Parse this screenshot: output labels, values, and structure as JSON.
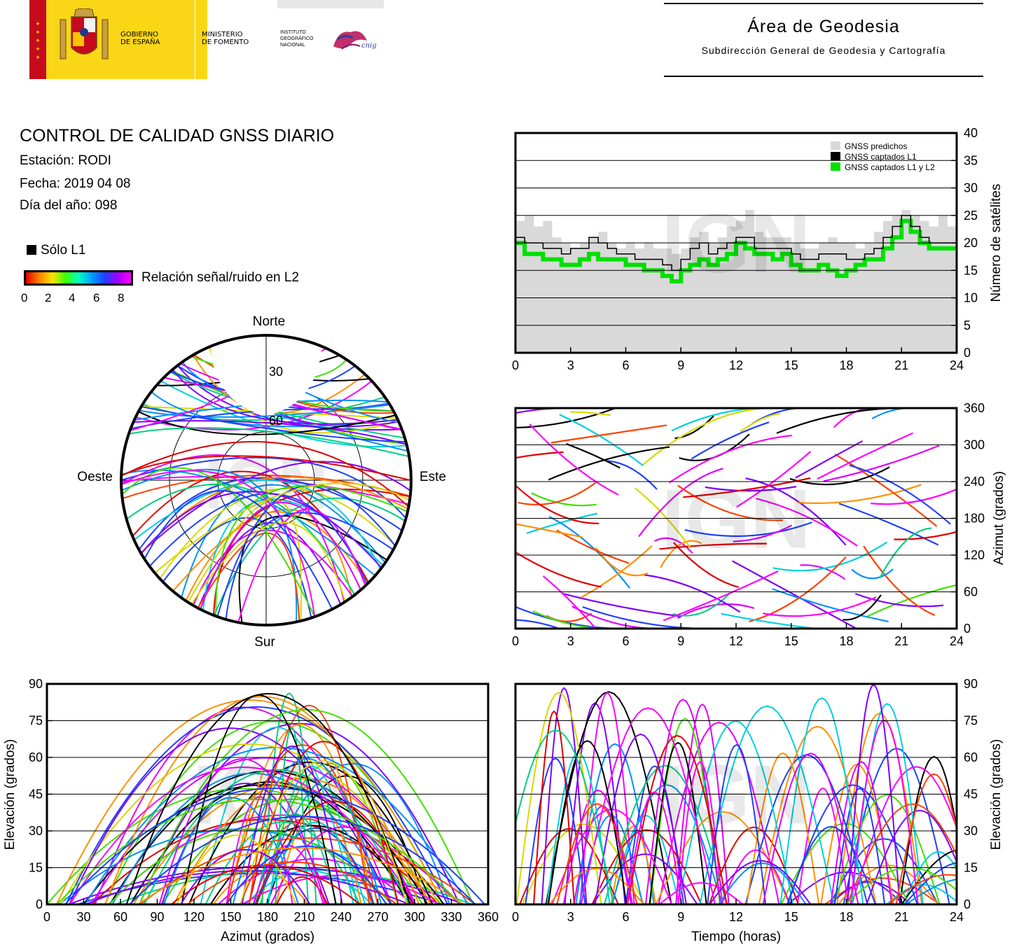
{
  "header": {
    "logo_gov": {
      "line1": "GOBIERNO",
      "line2": "DE ESPAÑA"
    },
    "logo_ministry": {
      "line1": "MINISTERIO",
      "line2": "DE FOMENTO"
    },
    "logo_ign": {
      "line1": "INSTITUTO",
      "line2": "GEOGRÁFICO",
      "line3": "NACIONAL"
    },
    "logo_cnig": "cnig",
    "area_title": "Área de Geodesia",
    "area_subtitle": "Subdirección General de Geodesia y Cartografía",
    "colors": {
      "flag_red": "#c60b1e",
      "flag_yellow": "#ffc400",
      "gov_yellow": "#f9d616",
      "eu_blue": "#1a3c8e"
    }
  },
  "report": {
    "title": "CONTROL DE CALIDAD GNSS DIARIO",
    "station": "Estación: RODI",
    "date": "Fecha: 2019 04 08",
    "doy": "Día del año: 098"
  },
  "legend": {
    "l1_only": "Sólo L1",
    "snr_label": "Relación señal/ruido en L2",
    "snr_ticks": [
      "0",
      "2",
      "4",
      "6",
      "8"
    ]
  },
  "watermark": "IGN",
  "chart_data": [
    {
      "id": "satellite-count",
      "type": "area",
      "xlabel": "",
      "ylabel": "Número de satélites",
      "xlim": [
        0,
        24
      ],
      "ylim": [
        0,
        40
      ],
      "xticks": [
        0,
        3,
        6,
        9,
        12,
        15,
        18,
        21,
        24
      ],
      "yticks": [
        0,
        5,
        10,
        15,
        20,
        25,
        30,
        35,
        40
      ],
      "grid": "horizontal",
      "legend_position": "top-right",
      "series": [
        {
          "name": "GNSS predichos",
          "color": "#d9d9d9",
          "x": [
            0,
            0.5,
            1,
            1.5,
            2,
            2.5,
            3,
            3.5,
            4,
            4.5,
            5,
            5.5,
            6,
            6.5,
            7,
            7.5,
            8,
            8.5,
            9,
            9.5,
            10,
            10.5,
            11,
            11.5,
            12,
            12.5,
            13,
            13.5,
            14,
            14.5,
            15,
            15.5,
            16,
            16.5,
            17,
            17.5,
            18,
            18.5,
            19,
            19.5,
            20,
            20.5,
            21,
            21.5,
            22,
            22.5,
            23,
            23.5,
            24
          ],
          "values": [
            24,
            25,
            23,
            24,
            21,
            20,
            19,
            20,
            21,
            22,
            20,
            19,
            20,
            19,
            20,
            19,
            19,
            18,
            19,
            21,
            22,
            20,
            21,
            23,
            24,
            26,
            22,
            21,
            21,
            21,
            20,
            19,
            19,
            20,
            21,
            20,
            20,
            19,
            20,
            22,
            24,
            25,
            26,
            25,
            24,
            23,
            25,
            23,
            22
          ]
        },
        {
          "name": "GNSS captados L1",
          "color": "#000000",
          "x": [
            0,
            0.5,
            1,
            1.5,
            2,
            2.5,
            3,
            3.5,
            4,
            4.5,
            5,
            5.5,
            6,
            6.5,
            7,
            7.5,
            8,
            8.5,
            9,
            9.5,
            10,
            10.5,
            11,
            11.5,
            12,
            12.5,
            13,
            13.5,
            14,
            14.5,
            15,
            15.5,
            16,
            16.5,
            17,
            17.5,
            18,
            18.5,
            19,
            19.5,
            20,
            20.5,
            21,
            21.5,
            22,
            22.5,
            23,
            23.5,
            24
          ],
          "values": [
            21,
            20,
            20,
            19,
            19,
            18,
            19,
            19,
            21,
            20,
            19,
            18,
            18,
            17,
            17,
            17,
            16,
            15,
            17,
            19,
            20,
            18,
            19,
            20,
            21,
            21,
            19,
            19,
            19,
            19,
            18,
            17,
            17,
            18,
            18,
            18,
            17,
            17,
            18,
            19,
            21,
            23,
            25,
            23,
            21,
            20,
            20,
            20,
            20
          ]
        },
        {
          "name": "GNSS captados L1 y L2",
          "color": "#00e000",
          "x": [
            0,
            0.5,
            1,
            1.5,
            2,
            2.5,
            3,
            3.5,
            4,
            4.5,
            5,
            5.5,
            6,
            6.5,
            7,
            7.5,
            8,
            8.5,
            9,
            9.5,
            10,
            10.5,
            11,
            11.5,
            12,
            12.5,
            13,
            13.5,
            14,
            14.5,
            15,
            15.5,
            16,
            16.5,
            17,
            17.5,
            18,
            18.5,
            19,
            19.5,
            20,
            20.5,
            21,
            21.5,
            22,
            22.5,
            23,
            23.5,
            24
          ],
          "values": [
            20,
            18,
            18,
            17,
            17,
            16,
            16,
            17,
            18,
            17,
            17,
            17,
            16,
            16,
            15,
            15,
            14,
            13,
            15,
            16,
            17,
            16,
            17,
            18,
            20,
            19,
            18,
            18,
            17,
            18,
            16,
            15,
            15,
            16,
            15,
            14,
            15,
            16,
            17,
            17,
            19,
            21,
            24,
            22,
            20,
            19,
            19,
            19,
            19
          ]
        }
      ]
    },
    {
      "id": "sky-plot",
      "type": "scatter",
      "ylabel": "",
      "xlabel": "",
      "direction_labels": {
        "north": "Norte",
        "south": "Sur",
        "east": "Este",
        "west": "Oeste"
      },
      "elevation_rings": [
        "30",
        "60"
      ]
    },
    {
      "id": "azimuth-vs-time",
      "type": "scatter",
      "xlabel": "",
      "ylabel": "Azimut (grados)",
      "xlim": [
        0,
        24
      ],
      "ylim": [
        0,
        360
      ],
      "xticks": [
        0,
        3,
        6,
        9,
        12,
        15,
        18,
        21,
        24
      ],
      "yticks": [
        0,
        60,
        120,
        180,
        240,
        300,
        360
      ],
      "grid": "horizontal"
    },
    {
      "id": "elevation-vs-azimuth",
      "type": "scatter",
      "xlabel": "Azimut (grados)",
      "ylabel": "Elevación (grados)",
      "xlim": [
        0,
        360
      ],
      "ylim": [
        0,
        90
      ],
      "xticks": [
        0,
        30,
        60,
        90,
        120,
        150,
        180,
        210,
        240,
        270,
        300,
        330,
        360
      ],
      "yticks": [
        0,
        15,
        30,
        45,
        60,
        75,
        90
      ],
      "grid": "horizontal"
    },
    {
      "id": "elevation-vs-time",
      "type": "line",
      "xlabel": "Tiempo (horas)",
      "ylabel": "Elevación (grados)",
      "xlim": [
        0,
        24
      ],
      "ylim": [
        0,
        90
      ],
      "xticks": [
        0,
        3,
        6,
        9,
        12,
        15,
        18,
        21,
        24
      ],
      "yticks": [
        0,
        15,
        30,
        45,
        60,
        75,
        90
      ],
      "grid": "horizontal"
    }
  ]
}
